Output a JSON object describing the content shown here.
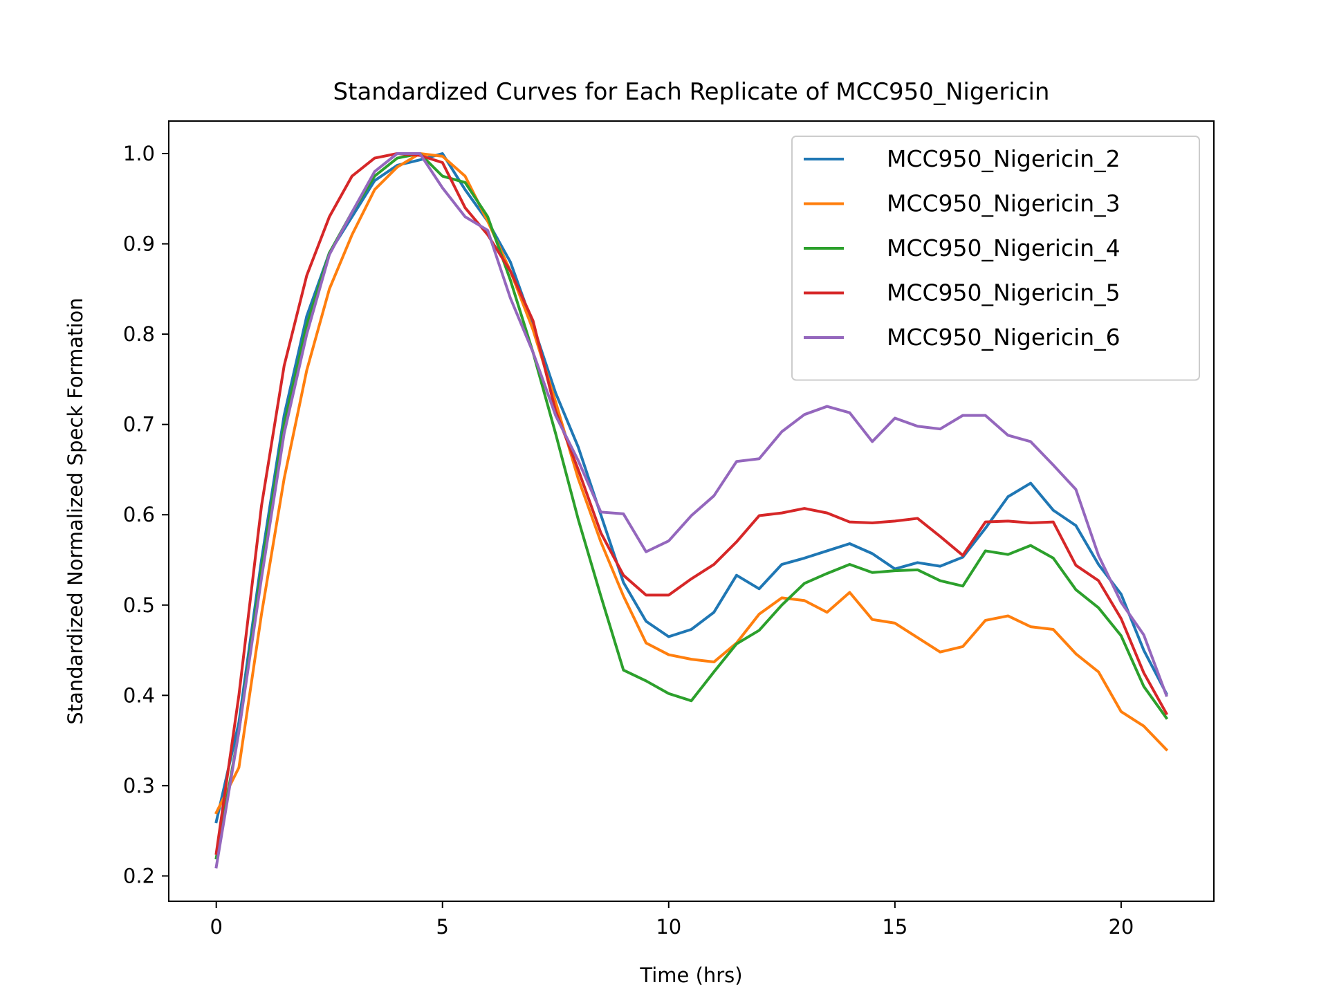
{
  "chart_data": {
    "type": "line",
    "title": "Standardized Curves for Each Replicate of MCC950_Nigericin",
    "xlabel": "Time (hrs)",
    "ylabel": "Standardized Normalized Speck Formation",
    "xlim": [
      -1.05,
      22.05
    ],
    "ylim": [
      0.172,
      1.036
    ],
    "xticks": [
      0,
      5,
      10,
      15,
      20
    ],
    "yticks": [
      0.2,
      0.3,
      0.4,
      0.5,
      0.6,
      0.7,
      0.8,
      0.9,
      1.0
    ],
    "xtick_labels": [
      "0",
      "5",
      "10",
      "15",
      "20"
    ],
    "ytick_labels": [
      "0.2",
      "0.3",
      "0.4",
      "0.5",
      "0.6",
      "0.7",
      "0.8",
      "0.9",
      "1.0"
    ],
    "grid": false,
    "legend_position": "top-right",
    "x": [
      0,
      0.5,
      1,
      1.5,
      2,
      2.5,
      3,
      3.5,
      4,
      4.5,
      5,
      5.5,
      6,
      6.5,
      7,
      7.5,
      8,
      8.5,
      9,
      9.5,
      10,
      10.5,
      11,
      11.5,
      12,
      12.5,
      13,
      13.5,
      14,
      14.5,
      15,
      15.5,
      16,
      16.5,
      17,
      17.5,
      18,
      18.5,
      19,
      19.5,
      20,
      20.5,
      21
    ],
    "series": [
      {
        "name": "MCC950_Nigericin_2",
        "color": "#1f77b4",
        "values": [
          0.26,
          0.37,
          0.55,
          0.71,
          0.82,
          0.89,
          0.93,
          0.97,
          0.987,
          0.993,
          1.0,
          0.96,
          0.925,
          0.88,
          0.81,
          0.735,
          0.675,
          0.6,
          0.525,
          0.482,
          0.465,
          0.473,
          0.492,
          0.533,
          0.518,
          0.545,
          0.552,
          0.56,
          0.568,
          0.557,
          0.54,
          0.547,
          0.543,
          0.553,
          0.585,
          0.62,
          0.635,
          0.605,
          0.588,
          0.545,
          0.512,
          0.45,
          0.402
        ]
      },
      {
        "name": "MCC950_Nigericin_3",
        "color": "#ff7f0e",
        "values": [
          0.27,
          0.32,
          0.49,
          0.64,
          0.76,
          0.85,
          0.91,
          0.96,
          0.985,
          1.0,
          0.997,
          0.975,
          0.925,
          0.87,
          0.805,
          0.725,
          0.64,
          0.57,
          0.51,
          0.458,
          0.445,
          0.44,
          0.437,
          0.458,
          0.49,
          0.508,
          0.505,
          0.492,
          0.514,
          0.484,
          0.48,
          0.464,
          0.448,
          0.454,
          0.483,
          0.488,
          0.476,
          0.473,
          0.446,
          0.426,
          0.382,
          0.366,
          0.34
        ]
      },
      {
        "name": "MCC950_Nigericin_4",
        "color": "#2ca02c",
        "values": [
          0.22,
          0.36,
          0.54,
          0.7,
          0.81,
          0.89,
          0.935,
          0.975,
          0.995,
          1.0,
          0.975,
          0.968,
          0.93,
          0.86,
          0.78,
          0.69,
          0.595,
          0.51,
          0.428,
          0.416,
          0.402,
          0.394,
          0.426,
          0.457,
          0.472,
          0.5,
          0.524,
          0.535,
          0.545,
          0.536,
          0.538,
          0.539,
          0.527,
          0.521,
          0.56,
          0.556,
          0.566,
          0.552,
          0.517,
          0.497,
          0.466,
          0.41,
          0.375
        ]
      },
      {
        "name": "MCC950_Nigericin_5",
        "color": "#d62728",
        "values": [
          0.225,
          0.4,
          0.61,
          0.765,
          0.865,
          0.93,
          0.975,
          0.995,
          1.0,
          0.998,
          0.99,
          0.94,
          0.91,
          0.87,
          0.815,
          0.715,
          0.65,
          0.58,
          0.533,
          0.511,
          0.511,
          0.529,
          0.545,
          0.57,
          0.599,
          0.602,
          0.607,
          0.602,
          0.592,
          0.591,
          0.593,
          0.596,
          0.576,
          0.555,
          0.592,
          0.593,
          0.591,
          0.592,
          0.544,
          0.527,
          0.485,
          0.425,
          0.38
        ]
      },
      {
        "name": "MCC950_Nigericin_6",
        "color": "#9467bd",
        "values": [
          0.21,
          0.36,
          0.53,
          0.69,
          0.8,
          0.888,
          0.935,
          0.98,
          1.0,
          1.0,
          0.962,
          0.93,
          0.915,
          0.84,
          0.78,
          0.71,
          0.66,
          0.603,
          0.601,
          0.559,
          0.571,
          0.599,
          0.621,
          0.659,
          0.662,
          0.692,
          0.711,
          0.72,
          0.713,
          0.681,
          0.707,
          0.698,
          0.695,
          0.71,
          0.71,
          0.688,
          0.681,
          0.655,
          0.628,
          0.555,
          0.503,
          0.467,
          0.4
        ]
      }
    ]
  }
}
